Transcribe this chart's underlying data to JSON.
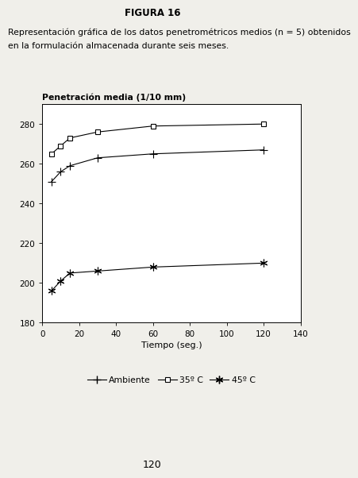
{
  "title_chart": "Penetración media (1/10 mm)",
  "xlabel": "Tiempo (seg.)",
  "xlim": [
    0,
    140
  ],
  "ylim": [
    180,
    290
  ],
  "xticks": [
    0,
    20,
    40,
    60,
    80,
    100,
    120,
    140
  ],
  "yticks": [
    180,
    200,
    220,
    240,
    260,
    280
  ],
  "series": [
    {
      "label": "Ambiente",
      "x": [
        5,
        10,
        15,
        30,
        60,
        120
      ],
      "y": [
        251,
        256,
        259,
        263,
        265,
        267
      ],
      "marker": "plus",
      "color": "#000000",
      "linestyle": "-"
    },
    {
      "label": "35º C",
      "x": [
        5,
        10,
        15,
        30,
        60,
        120
      ],
      "y": [
        265,
        269,
        273,
        276,
        279,
        280
      ],
      "marker": "square",
      "color": "#000000",
      "linestyle": "-"
    },
    {
      "label": "45º C",
      "x": [
        5,
        10,
        15,
        30,
        60,
        120
      ],
      "y": [
        196,
        201,
        205,
        206,
        208,
        210
      ],
      "marker": "star",
      "color": "#000000",
      "linestyle": "-"
    }
  ],
  "figure_title": "FIGURA 16",
  "figure_subtitle_line1": "Representación gráfica de los datos penetrométricos medios (n = 5) obtenidos",
  "figure_subtitle_line2": "en la formulación almacenada durante seis meses.",
  "page_number": "120",
  "background_color": "#f0efea",
  "plot_bg_color": "#ffffff"
}
